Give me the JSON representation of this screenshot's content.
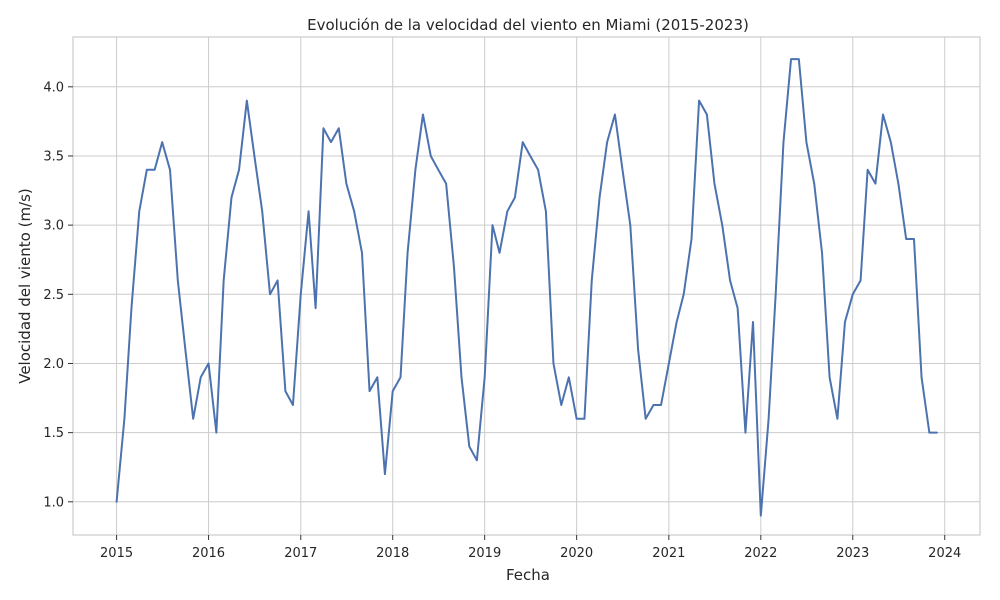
{
  "chart_data": {
    "type": "line",
    "title": "Evolución de la velocidad del viento en Miami (2015-2023)",
    "xlabel": "Fecha",
    "ylabel": "Velocidad del viento (m/s)",
    "xlim": [
      "2014-07-12",
      "2024-05-20"
    ],
    "ylim": [
      0.76,
      4.36
    ],
    "grid": true,
    "legend": "none",
    "colors": {
      "line": "#4c72b0",
      "grid": "#cccccc",
      "background": "#ffffff"
    },
    "x_ticks": [
      {
        "date": "2015-01-01",
        "label": "2015"
      },
      {
        "date": "2016-01-01",
        "label": "2016"
      },
      {
        "date": "2017-01-01",
        "label": "2017"
      },
      {
        "date": "2018-01-01",
        "label": "2018"
      },
      {
        "date": "2019-01-01",
        "label": "2019"
      },
      {
        "date": "2020-01-01",
        "label": "2020"
      },
      {
        "date": "2021-01-01",
        "label": "2021"
      },
      {
        "date": "2022-01-01",
        "label": "2022"
      },
      {
        "date": "2023-01-01",
        "label": "2023"
      },
      {
        "date": "2024-01-01",
        "label": "2024"
      }
    ],
    "y_ticks": [
      {
        "value": 1.0,
        "label": "1.0"
      },
      {
        "value": 1.5,
        "label": "1.5"
      },
      {
        "value": 2.0,
        "label": "2.0"
      },
      {
        "value": 2.5,
        "label": "2.5"
      },
      {
        "value": 3.0,
        "label": "3.0"
      },
      {
        "value": 3.5,
        "label": "3.5"
      },
      {
        "value": 4.0,
        "label": "4.0"
      }
    ],
    "series": [
      {
        "x": [
          "2015-01-01",
          "2015-02-01",
          "2015-03-01",
          "2015-04-01",
          "2015-05-01",
          "2015-06-01",
          "2015-07-01",
          "2015-08-01",
          "2015-09-01",
          "2015-10-01",
          "2015-11-01",
          "2015-12-01",
          "2016-01-01",
          "2016-02-01",
          "2016-03-01",
          "2016-04-01",
          "2016-05-01",
          "2016-06-01",
          "2016-07-01",
          "2016-08-01",
          "2016-09-01",
          "2016-10-01",
          "2016-11-01",
          "2016-12-01",
          "2017-01-01",
          "2017-02-01",
          "2017-03-01",
          "2017-04-01",
          "2017-05-01",
          "2017-06-01",
          "2017-07-01",
          "2017-08-01",
          "2017-09-01",
          "2017-10-01",
          "2017-11-01",
          "2017-12-01",
          "2018-01-01",
          "2018-02-01",
          "2018-03-01",
          "2018-04-01",
          "2018-05-01",
          "2018-06-01",
          "2018-07-01",
          "2018-08-01",
          "2018-09-01",
          "2018-10-01",
          "2018-11-01",
          "2018-12-01",
          "2019-01-01",
          "2019-02-01",
          "2019-03-01",
          "2019-04-01",
          "2019-05-01",
          "2019-06-01",
          "2019-07-01",
          "2019-08-01",
          "2019-09-01",
          "2019-10-01",
          "2019-11-01",
          "2019-12-01",
          "2020-01-01",
          "2020-02-01",
          "2020-03-01",
          "2020-04-01",
          "2020-05-01",
          "2020-06-01",
          "2020-07-01",
          "2020-08-01",
          "2020-09-01",
          "2020-10-01",
          "2020-11-01",
          "2020-12-01",
          "2021-01-01",
          "2021-02-01",
          "2021-03-01",
          "2021-04-01",
          "2021-05-01",
          "2021-06-01",
          "2021-07-01",
          "2021-08-01",
          "2021-09-01",
          "2021-10-01",
          "2021-11-01",
          "2021-12-01",
          "2022-01-01",
          "2022-02-01",
          "2022-03-01",
          "2022-04-01",
          "2022-05-01",
          "2022-06-01",
          "2022-07-01",
          "2022-08-01",
          "2022-09-01",
          "2022-10-01",
          "2022-11-01",
          "2022-12-01",
          "2023-01-01",
          "2023-02-01",
          "2023-03-01",
          "2023-04-01",
          "2023-05-01",
          "2023-06-01",
          "2023-07-01",
          "2023-08-01",
          "2023-09-01",
          "2023-10-01",
          "2023-11-01",
          "2023-12-01"
        ],
        "values": [
          1.0,
          1.6,
          2.4,
          3.1,
          3.4,
          3.4,
          3.6,
          3.4,
          2.6,
          2.1,
          1.6,
          1.9,
          2.0,
          1.5,
          2.6,
          3.2,
          3.4,
          3.9,
          3.5,
          3.1,
          2.5,
          2.6,
          1.8,
          1.7,
          2.5,
          3.1,
          2.4,
          3.7,
          3.6,
          3.7,
          3.3,
          3.1,
          2.8,
          1.8,
          1.9,
          1.2,
          1.8,
          1.9,
          2.8,
          3.4,
          3.8,
          3.5,
          3.4,
          3.3,
          2.7,
          1.9,
          1.4,
          1.3,
          1.9,
          3.0,
          2.8,
          3.1,
          3.2,
          3.6,
          3.5,
          3.4,
          3.1,
          2.0,
          1.7,
          1.9,
          1.6,
          1.6,
          2.6,
          3.2,
          3.6,
          3.8,
          3.4,
          3.0,
          2.1,
          1.6,
          1.7,
          1.7,
          2.0,
          2.3,
          2.5,
          2.9,
          3.9,
          3.8,
          3.3,
          3.0,
          2.6,
          2.4,
          1.5,
          2.3,
          0.9,
          1.6,
          2.5,
          3.6,
          4.2,
          4.2,
          3.6,
          3.3,
          2.8,
          1.9,
          1.6,
          2.3,
          2.5,
          2.6,
          3.4,
          3.3,
          3.8,
          3.6,
          3.3,
          2.9,
          2.9,
          1.9,
          1.5,
          1.5
        ]
      }
    ]
  }
}
